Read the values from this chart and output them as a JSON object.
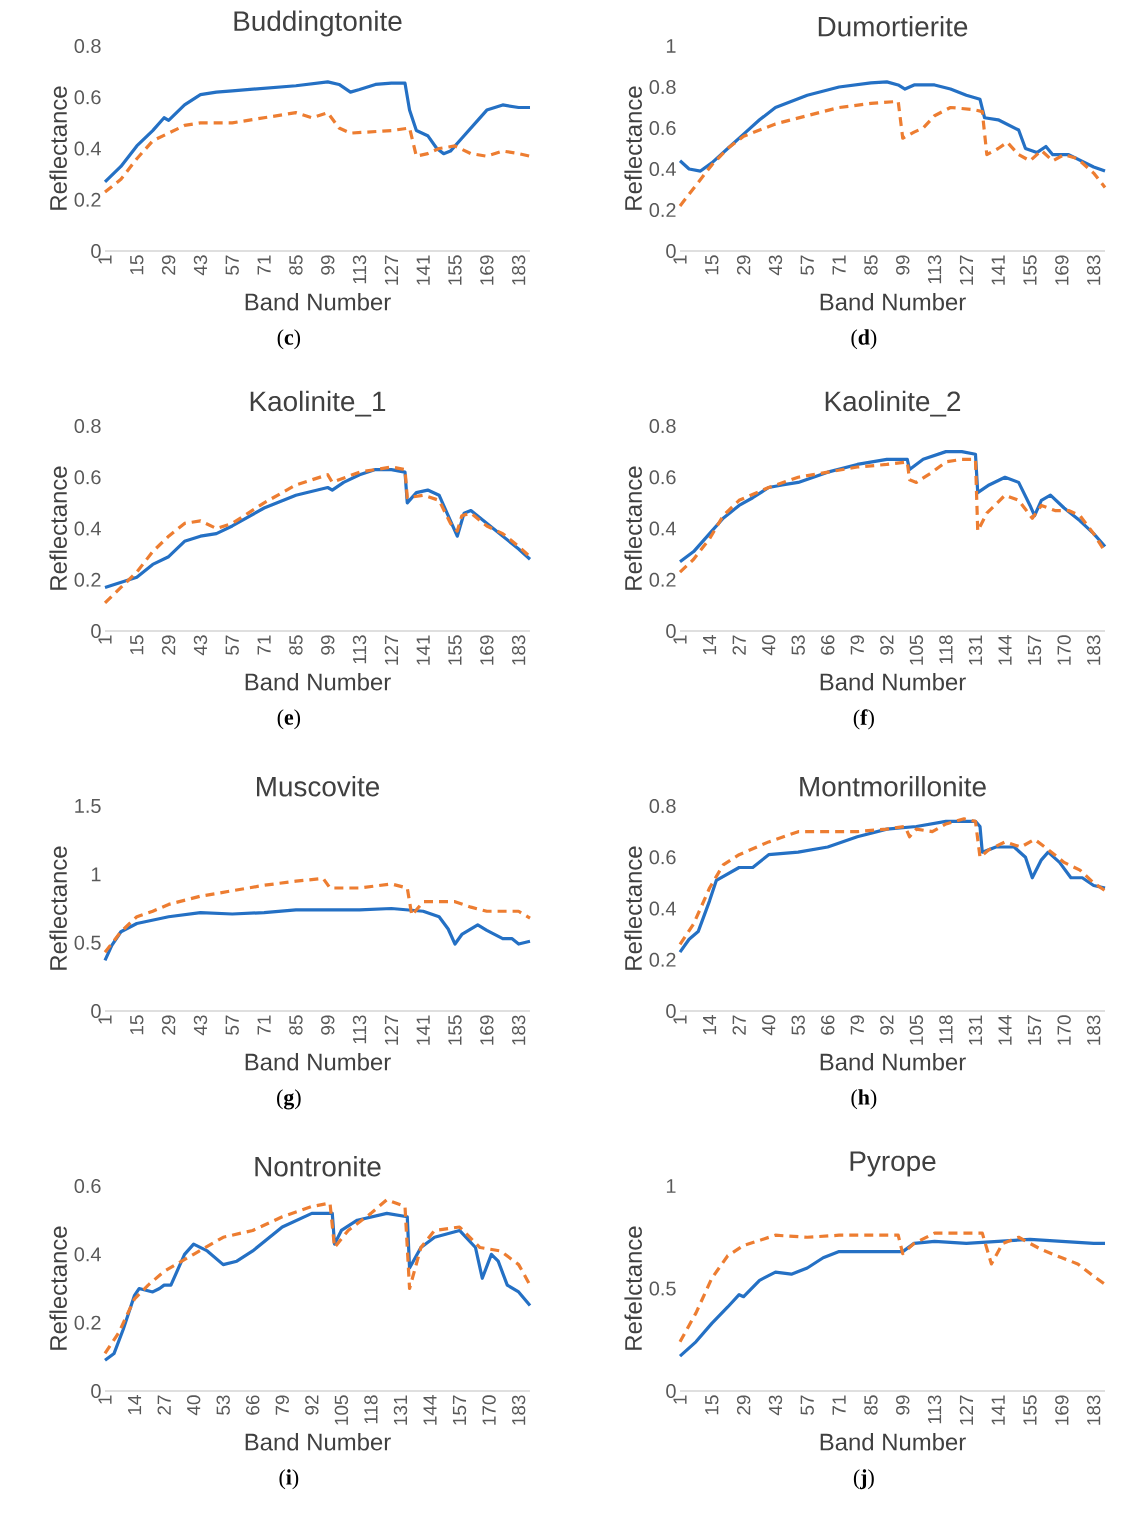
{
  "chart_data": [
    {
      "type": "line",
      "title": "Buddingtonite",
      "xlabel": "Band Number",
      "ylabel": "Reflectance",
      "xlim": [
        1,
        188
      ],
      "xticks": [
        1,
        15,
        29,
        43,
        57,
        71,
        85,
        99,
        113,
        127,
        141,
        155,
        169,
        183
      ],
      "ylim": [
        0,
        0.8
      ],
      "yticks": [
        0,
        0.2,
        0.4,
        0.6,
        0.8
      ],
      "annotations": [
        "(**c**)"
      ],
      "series": [
        {
          "color": "#2470c4",
          "line_style": "solid",
          "x": [
            1,
            8,
            15,
            22,
            27,
            29,
            36,
            43,
            50,
            57,
            71,
            85,
            99,
            104,
            109,
            113,
            120,
            127,
            133,
            135,
            138,
            143,
            147,
            150,
            153,
            158,
            165,
            169,
            176,
            183,
            188
          ],
          "values": [
            0.27,
            0.33,
            0.41,
            0.47,
            0.52,
            0.51,
            0.57,
            0.61,
            0.62,
            0.625,
            0.635,
            0.645,
            0.66,
            0.65,
            0.62,
            0.63,
            0.65,
            0.655,
            0.655,
            0.55,
            0.47,
            0.45,
            0.4,
            0.38,
            0.39,
            0.44,
            0.51,
            0.55,
            0.57,
            0.56,
            0.56
          ]
        },
        {
          "color": "#ed7d31",
          "line_style": "dashed",
          "x": [
            1,
            8,
            15,
            22,
            29,
            36,
            43,
            57,
            71,
            85,
            92,
            99,
            104,
            109,
            127,
            135,
            138,
            143,
            148,
            155,
            162,
            169,
            176,
            183,
            188
          ],
          "values": [
            0.23,
            0.28,
            0.36,
            0.43,
            0.46,
            0.49,
            0.5,
            0.5,
            0.52,
            0.54,
            0.52,
            0.54,
            0.48,
            0.46,
            0.47,
            0.48,
            0.37,
            0.38,
            0.4,
            0.41,
            0.38,
            0.37,
            0.39,
            0.38,
            0.37
          ]
        }
      ]
    },
    {
      "type": "line",
      "title": "Dumortierite",
      "xlabel": "Band Number",
      "ylabel": "Reflectance",
      "xlim": [
        1,
        188
      ],
      "xticks": [
        1,
        15,
        29,
        43,
        57,
        71,
        85,
        99,
        113,
        127,
        141,
        155,
        169,
        183
      ],
      "ylim": [
        0,
        1
      ],
      "yticks": [
        0,
        0.2,
        0.4,
        0.6,
        0.8,
        1
      ],
      "annotations": [
        "(**d**)"
      ],
      "series": [
        {
          "color": "#2470c4",
          "line_style": "solid",
          "x": [
            1,
            5,
            10,
            15,
            22,
            29,
            36,
            43,
            57,
            71,
            85,
            92,
            97,
            100,
            104,
            113,
            120,
            127,
            133,
            135,
            141,
            150,
            153,
            158,
            162,
            165,
            172,
            183,
            188
          ],
          "values": [
            0.44,
            0.4,
            0.39,
            0.43,
            0.5,
            0.57,
            0.64,
            0.7,
            0.76,
            0.8,
            0.82,
            0.825,
            0.81,
            0.79,
            0.81,
            0.81,
            0.79,
            0.76,
            0.74,
            0.65,
            0.64,
            0.59,
            0.5,
            0.48,
            0.51,
            0.47,
            0.47,
            0.41,
            0.39
          ]
        },
        {
          "color": "#ed7d31",
          "line_style": "dashed",
          "x": [
            1,
            8,
            15,
            22,
            29,
            43,
            57,
            71,
            85,
            97,
            99,
            104,
            108,
            113,
            120,
            130,
            134,
            136,
            141,
            145,
            150,
            155,
            160,
            165,
            170,
            176,
            183,
            188
          ],
          "values": [
            0.22,
            0.32,
            0.42,
            0.5,
            0.56,
            0.62,
            0.66,
            0.7,
            0.72,
            0.73,
            0.55,
            0.58,
            0.6,
            0.66,
            0.7,
            0.69,
            0.68,
            0.47,
            0.5,
            0.53,
            0.47,
            0.44,
            0.49,
            0.44,
            0.47,
            0.45,
            0.38,
            0.31
          ]
        }
      ]
    },
    {
      "type": "line",
      "title": "Kaolinite_1",
      "xlabel": "Band Number",
      "ylabel": "Reflectance",
      "xlim": [
        1,
        188
      ],
      "xticks": [
        1,
        15,
        29,
        43,
        57,
        71,
        85,
        99,
        113,
        127,
        141,
        155,
        169,
        183
      ],
      "ylim": [
        0,
        0.8
      ],
      "yticks": [
        0,
        0.2,
        0.4,
        0.6,
        0.8
      ],
      "annotations": [
        "(**e**)"
      ],
      "series": [
        {
          "color": "#2470c4",
          "line_style": "solid",
          "x": [
            1,
            8,
            15,
            22,
            29,
            36,
            43,
            50,
            57,
            71,
            85,
            99,
            101,
            106,
            113,
            120,
            127,
            133,
            134,
            138,
            143,
            148,
            152,
            156,
            159,
            162,
            169,
            176,
            183,
            188
          ],
          "values": [
            0.17,
            0.19,
            0.21,
            0.26,
            0.29,
            0.35,
            0.37,
            0.38,
            0.41,
            0.48,
            0.53,
            0.56,
            0.55,
            0.58,
            0.61,
            0.63,
            0.63,
            0.62,
            0.5,
            0.54,
            0.55,
            0.53,
            0.45,
            0.37,
            0.46,
            0.47,
            0.42,
            0.37,
            0.32,
            0.28
          ]
        },
        {
          "color": "#ed7d31",
          "line_style": "dashed",
          "x": [
            1,
            8,
            15,
            22,
            29,
            36,
            43,
            50,
            57,
            71,
            85,
            92,
            99,
            101,
            113,
            127,
            133,
            134,
            141,
            148,
            153,
            156,
            158,
            162,
            169,
            176,
            183,
            188
          ],
          "values": [
            0.11,
            0.17,
            0.23,
            0.31,
            0.37,
            0.42,
            0.43,
            0.4,
            0.42,
            0.5,
            0.57,
            0.59,
            0.61,
            0.58,
            0.62,
            0.64,
            0.63,
            0.52,
            0.53,
            0.51,
            0.42,
            0.39,
            0.45,
            0.46,
            0.41,
            0.38,
            0.33,
            0.29
          ]
        }
      ]
    },
    {
      "type": "line",
      "title": "Kaolinite_2",
      "xlabel": "Band Number",
      "ylabel": "Reflectance",
      "xlim": [
        1,
        188
      ],
      "xticks": [
        1,
        14,
        27,
        40,
        53,
        66,
        79,
        92,
        105,
        118,
        131,
        144,
        157,
        170,
        183
      ],
      "ylim": [
        0,
        0.8
      ],
      "yticks": [
        0,
        0.2,
        0.4,
        0.6,
        0.8
      ],
      "annotations": [
        "(**f**)"
      ],
      "series": [
        {
          "color": "#2470c4",
          "line_style": "solid",
          "x": [
            1,
            7,
            14,
            20,
            27,
            33,
            40,
            46,
            53,
            66,
            79,
            92,
            101,
            102,
            108,
            118,
            125,
            131,
            132,
            137,
            144,
            150,
            155,
            157,
            160,
            164,
            170,
            177,
            183,
            188
          ],
          "values": [
            0.27,
            0.31,
            0.38,
            0.44,
            0.49,
            0.52,
            0.56,
            0.57,
            0.58,
            0.62,
            0.65,
            0.67,
            0.67,
            0.63,
            0.67,
            0.7,
            0.7,
            0.69,
            0.54,
            0.57,
            0.6,
            0.58,
            0.49,
            0.45,
            0.51,
            0.53,
            0.48,
            0.43,
            0.38,
            0.33
          ]
        },
        {
          "color": "#ed7d31",
          "line_style": "dashed",
          "x": [
            1,
            7,
            14,
            20,
            27,
            40,
            53,
            66,
            79,
            92,
            101,
            102,
            105,
            112,
            118,
            125,
            131,
            132,
            136,
            144,
            150,
            156,
            160,
            166,
            172,
            177,
            183,
            188
          ],
          "values": [
            0.23,
            0.28,
            0.36,
            0.45,
            0.51,
            0.56,
            0.6,
            0.62,
            0.64,
            0.65,
            0.66,
            0.59,
            0.58,
            0.62,
            0.66,
            0.67,
            0.67,
            0.39,
            0.46,
            0.53,
            0.51,
            0.44,
            0.49,
            0.47,
            0.47,
            0.45,
            0.38,
            0.31
          ]
        }
      ]
    },
    {
      "type": "line",
      "title": "Muscovite",
      "xlabel": "Band Number",
      "ylabel": "Reflectance",
      "xlim": [
        1,
        188
      ],
      "xticks": [
        1,
        15,
        29,
        43,
        57,
        71,
        85,
        99,
        113,
        127,
        141,
        155,
        169,
        183
      ],
      "ylim": [
        0,
        1.5
      ],
      "yticks": [
        0,
        0.5,
        1,
        1.5
      ],
      "annotations": [
        "(**g**)"
      ],
      "series": [
        {
          "color": "#2470c4",
          "line_style": "solid",
          "x": [
            1,
            4,
            8,
            15,
            29,
            43,
            57,
            71,
            85,
            99,
            113,
            127,
            141,
            148,
            152,
            155,
            158,
            165,
            169,
            176,
            180,
            183,
            188
          ],
          "values": [
            0.37,
            0.48,
            0.58,
            0.64,
            0.69,
            0.72,
            0.71,
            0.72,
            0.74,
            0.74,
            0.74,
            0.75,
            0.73,
            0.69,
            0.6,
            0.49,
            0.56,
            0.63,
            0.59,
            0.53,
            0.53,
            0.49,
            0.51
          ]
        },
        {
          "color": "#ed7d31",
          "line_style": "dashed",
          "x": [
            1,
            8,
            15,
            22,
            29,
            43,
            57,
            71,
            85,
            97,
            100,
            113,
            127,
            134,
            136,
            141,
            155,
            162,
            169,
            183,
            188
          ],
          "values": [
            0.43,
            0.58,
            0.69,
            0.73,
            0.78,
            0.84,
            0.88,
            0.92,
            0.95,
            0.97,
            0.9,
            0.9,
            0.93,
            0.9,
            0.7,
            0.8,
            0.8,
            0.76,
            0.73,
            0.73,
            0.68
          ]
        }
      ]
    },
    {
      "type": "line",
      "title": "Montmorillonite",
      "xlabel": "Band Number",
      "ylabel": "Reflectance",
      "xlim": [
        1,
        188
      ],
      "xticks": [
        1,
        14,
        27,
        40,
        53,
        66,
        79,
        92,
        105,
        118,
        131,
        144,
        157,
        170,
        183
      ],
      "ylim": [
        0,
        0.8
      ],
      "yticks": [
        0,
        0.2,
        0.4,
        0.6,
        0.8
      ],
      "annotations": [
        "(**h**)"
      ],
      "series": [
        {
          "color": "#2470c4",
          "line_style": "solid",
          "x": [
            1,
            5,
            9,
            14,
            17,
            27,
            33,
            40,
            53,
            66,
            79,
            92,
            105,
            118,
            131,
            133,
            134,
            140,
            148,
            153,
            156,
            160,
            163,
            168,
            173,
            178,
            183,
            188
          ],
          "values": [
            0.23,
            0.28,
            0.31,
            0.43,
            0.51,
            0.56,
            0.56,
            0.61,
            0.62,
            0.64,
            0.68,
            0.71,
            0.72,
            0.74,
            0.74,
            0.72,
            0.62,
            0.64,
            0.64,
            0.6,
            0.52,
            0.59,
            0.62,
            0.58,
            0.52,
            0.52,
            0.49,
            0.48
          ]
        },
        {
          "color": "#ed7d31",
          "line_style": "dashed",
          "x": [
            1,
            7,
            14,
            20,
            27,
            40,
            53,
            66,
            79,
            92,
            100,
            102,
            105,
            112,
            118,
            126,
            131,
            133,
            137,
            144,
            151,
            157,
            163,
            170,
            177,
            183,
            188
          ],
          "values": [
            0.26,
            0.34,
            0.48,
            0.57,
            0.61,
            0.66,
            0.7,
            0.7,
            0.7,
            0.71,
            0.72,
            0.68,
            0.71,
            0.7,
            0.73,
            0.75,
            0.74,
            0.6,
            0.63,
            0.66,
            0.64,
            0.67,
            0.63,
            0.58,
            0.55,
            0.5,
            0.47
          ]
        }
      ]
    },
    {
      "type": "line",
      "title": "Nontronite",
      "xlabel": "Band Number",
      "ylabel": "Reflectance",
      "xlim": [
        1,
        188
      ],
      "xticks": [
        1,
        14,
        27,
        40,
        53,
        66,
        79,
        92,
        105,
        118,
        131,
        144,
        157,
        170,
        183
      ],
      "ylim": [
        0,
        0.6
      ],
      "yticks": [
        0,
        0.2,
        0.4,
        0.6
      ],
      "annotations": [
        "(**i**)"
      ],
      "series": [
        {
          "color": "#2470c4",
          "line_style": "solid",
          "x": [
            1,
            5,
            9,
            14,
            16,
            22,
            25,
            27,
            30,
            36,
            40,
            46,
            53,
            59,
            66,
            79,
            92,
            101,
            102,
            105,
            112,
            125,
            134,
            135,
            140,
            146,
            157,
            164,
            167,
            171,
            174,
            178,
            183,
            188
          ],
          "values": [
            0.09,
            0.11,
            0.18,
            0.28,
            0.3,
            0.29,
            0.3,
            0.31,
            0.31,
            0.4,
            0.43,
            0.41,
            0.37,
            0.38,
            0.41,
            0.48,
            0.52,
            0.52,
            0.43,
            0.47,
            0.5,
            0.52,
            0.51,
            0.36,
            0.42,
            0.45,
            0.47,
            0.42,
            0.33,
            0.4,
            0.38,
            0.31,
            0.29,
            0.25
          ]
        },
        {
          "color": "#ed7d31",
          "line_style": "dashed",
          "x": [
            1,
            7,
            14,
            20,
            27,
            40,
            53,
            66,
            79,
            92,
            100,
            102,
            108,
            118,
            125,
            133,
            135,
            140,
            146,
            157,
            166,
            175,
            183,
            188
          ],
          "values": [
            0.11,
            0.17,
            0.27,
            0.31,
            0.35,
            0.4,
            0.45,
            0.47,
            0.51,
            0.54,
            0.55,
            0.42,
            0.47,
            0.52,
            0.56,
            0.54,
            0.3,
            0.42,
            0.47,
            0.48,
            0.42,
            0.41,
            0.37,
            0.31
          ]
        }
      ]
    },
    {
      "type": "line",
      "title": "Pyrope",
      "xlabel": "Band Number",
      "ylabel": "Refelctance",
      "xlim": [
        1,
        188
      ],
      "xticks": [
        1,
        15,
        29,
        43,
        57,
        71,
        85,
        99,
        113,
        127,
        141,
        155,
        169,
        183
      ],
      "ylim": [
        0,
        1
      ],
      "yticks": [
        0,
        0.5,
        1
      ],
      "annotations": [
        "(**j**)"
      ],
      "series": [
        {
          "color": "#2470c4",
          "line_style": "solid",
          "x": [
            1,
            8,
            15,
            22,
            27,
            29,
            36,
            43,
            50,
            57,
            64,
            71,
            85,
            99,
            104,
            113,
            127,
            141,
            155,
            169,
            183,
            188
          ],
          "values": [
            0.17,
            0.24,
            0.33,
            0.41,
            0.47,
            0.46,
            0.54,
            0.58,
            0.57,
            0.6,
            0.65,
            0.68,
            0.68,
            0.68,
            0.72,
            0.73,
            0.72,
            0.73,
            0.74,
            0.73,
            0.72,
            0.72
          ]
        },
        {
          "color": "#ed7d31",
          "line_style": "dashed",
          "x": [
            1,
            8,
            15,
            22,
            29,
            43,
            57,
            71,
            85,
            97,
            99,
            104,
            113,
            127,
            134,
            138,
            143,
            150,
            160,
            169,
            176,
            183,
            188
          ],
          "values": [
            0.24,
            0.38,
            0.55,
            0.66,
            0.71,
            0.76,
            0.75,
            0.76,
            0.76,
            0.76,
            0.67,
            0.72,
            0.77,
            0.77,
            0.77,
            0.62,
            0.72,
            0.75,
            0.69,
            0.65,
            0.62,
            0.56,
            0.52
          ]
        }
      ]
    }
  ]
}
